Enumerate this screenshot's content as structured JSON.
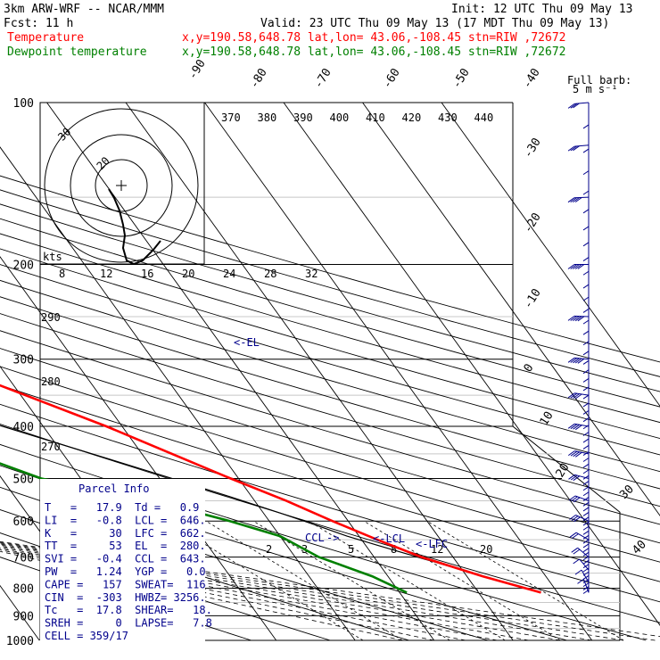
{
  "header": {
    "model": "3km ARW-WRF -- NCAR/MMM",
    "init": "Init: 12 UTC Thu 09 May 13",
    "fcst": "Fcst:   11 h",
    "valid": "Valid: 23 UTC Thu 09 May 13 (17 MDT Thu 09 May 13)",
    "temp_label": "Temperature",
    "temp_loc": "x,y=190.58,648.78   lat,lon= 43.06,-108.45  stn=RIW ,72672",
    "dew_label": "Dewpoint temperature",
    "dew_loc": "x,y=190.58,648.78   lat,lon= 43.06,-108.45  stn=RIW ,72672"
  },
  "colors": {
    "temperature": "#ff0000",
    "dewpoint": "#008000",
    "parcel": "#000000",
    "barbs": "#00008b",
    "text_blue": "#00008b"
  },
  "pressure_labels": [
    "100",
    "200",
    "300",
    "400",
    "500",
    "600",
    "700",
    "800",
    "900",
    "1000"
  ],
  "isotherm_labels": [
    "-90",
    "-80",
    "-70",
    "-60",
    "-50",
    "-40",
    "-30",
    "-20",
    "-10",
    "0",
    "10",
    "20",
    "30",
    "40"
  ],
  "theta_labels": [
    "370",
    "380",
    "390",
    "400",
    "410",
    "420",
    "430",
    "440"
  ],
  "mixing_ratio_labels": [
    "2",
    "3",
    "5",
    "8",
    "12",
    "20"
  ],
  "hodograph_speed_labels": [
    "8",
    "12",
    "16",
    "20",
    "24",
    "28",
    "32"
  ],
  "hodograph_kts": "kts",
  "hodograph_ring_labels": [
    "30",
    "20"
  ],
  "side_labels": [
    "290",
    "280",
    "270"
  ],
  "levels": {
    "el": "<-EL",
    "lcl": "<-LCL",
    "lfc": "<-LFC",
    "ccl": "CCL",
    "ccl_arrow": "->"
  },
  "barb_legend": {
    "title": "Full barb:",
    "sub": "5 m s⁻¹"
  },
  "parcel_info": {
    "title": "Parcel Info",
    "rows": [
      "T   =   17.9  Td =   0.9",
      "LI  =   -0.8  LCL =  646.",
      "K   =     30  LFC =  662.",
      "TT  =     53  EL  =  280.",
      "SVI =   -0.4  CCL =  643.",
      "PW  =   1.24  YGP =   0.0",
      "CAPE =   157  SWEAT=  116",
      "CIN  =  -303  HWBZ= 3256.",
      "Tc   =  17.8  SHEAR=   18.",
      "SREH =     0  LAPSE=   7.8",
      "CELL = 359/17"
    ]
  },
  "chart_data": {
    "type": "line",
    "title": "",
    "xlabel": "",
    "ylabel": "",
    "y_axis": "pressure (hPa), log scale",
    "ylim": [
      1000,
      100
    ],
    "series": [
      {
        "name": "Temperature",
        "points": [
          {
            "p": 815,
            "t": 17.9
          },
          {
            "p": 760,
            "t": 12.0
          },
          {
            "p": 700,
            "t": 6.0
          },
          {
            "p": 650,
            "t": 2.0
          },
          {
            "p": 600,
            "t": -2.0
          },
          {
            "p": 550,
            "t": -6.0
          },
          {
            "p": 500,
            "t": -11.0
          },
          {
            "p": 400,
            "t": -22.0
          },
          {
            "p": 300,
            "t": -38.0
          },
          {
            "p": 250,
            "t": -48.0
          },
          {
            "p": 200,
            "t": -56.0
          },
          {
            "p": 180,
            "t": -56.0
          },
          {
            "p": 150,
            "t": -54.0
          },
          {
            "p": 120,
            "t": -55.0
          },
          {
            "p": 100,
            "t": -57.0
          }
        ]
      },
      {
        "name": "Dewpoint temperature",
        "points": [
          {
            "p": 815,
            "t": 0.9
          },
          {
            "p": 760,
            "t": -2.0
          },
          {
            "p": 700,
            "t": -7.0
          },
          {
            "p": 640,
            "t": -10.0
          },
          {
            "p": 600,
            "t": -15.0
          },
          {
            "p": 550,
            "t": -23.0
          },
          {
            "p": 500,
            "t": -35.0
          },
          {
            "p": 460,
            "t": -40.0
          },
          {
            "p": 400,
            "t": -44.0
          },
          {
            "p": 300,
            "t": -53.0
          },
          {
            "p": 250,
            "t": -61.0
          },
          {
            "p": 200,
            "t": -69.0
          },
          {
            "p": 160,
            "t": -75.0
          },
          {
            "p": 130,
            "t": -79.0
          },
          {
            "p": 100,
            "t": -87.0
          }
        ]
      }
    ],
    "wind_profile": [
      {
        "p": 815,
        "dir": 200,
        "spd": 5
      },
      {
        "p": 780,
        "dir": 210,
        "spd": 7
      },
      {
        "p": 740,
        "dir": 220,
        "spd": 9
      },
      {
        "p": 700,
        "dir": 230,
        "spd": 11
      },
      {
        "p": 650,
        "dir": 240,
        "spd": 13
      },
      {
        "p": 600,
        "dir": 245,
        "spd": 15
      },
      {
        "p": 550,
        "dir": 250,
        "spd": 16
      },
      {
        "p": 500,
        "dir": 255,
        "spd": 18
      },
      {
        "p": 450,
        "dir": 258,
        "spd": 20
      },
      {
        "p": 400,
        "dir": 260,
        "spd": 22
      },
      {
        "p": 350,
        "dir": 262,
        "spd": 24
      },
      {
        "p": 300,
        "dir": 265,
        "spd": 26
      },
      {
        "p": 250,
        "dir": 268,
        "spd": 28
      },
      {
        "p": 200,
        "dir": 270,
        "spd": 26
      },
      {
        "p": 150,
        "dir": 272,
        "spd": 22
      },
      {
        "p": 120,
        "dir": 275,
        "spd": 18
      },
      {
        "p": 100,
        "dir": 275,
        "spd": 15
      }
    ]
  }
}
